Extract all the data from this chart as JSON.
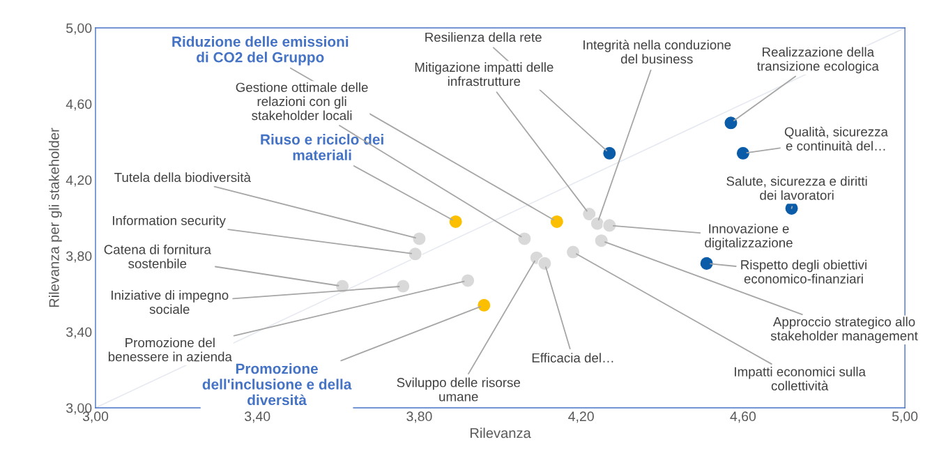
{
  "chart_data": {
    "type": "scatter",
    "xlabel": "Rilevanza",
    "ylabel": "Rilevanza per gli stakeholder",
    "xlim": [
      3,
      5
    ],
    "ylim": [
      3,
      5
    ],
    "xticks": [
      {
        "value": 3,
        "label": "3,00"
      },
      {
        "value": 3.4,
        "label": "3,40"
      },
      {
        "value": 3.8,
        "label": "3,80"
      },
      {
        "value": 4.2,
        "label": "4,20"
      },
      {
        "value": 4.6,
        "label": "4,60"
      },
      {
        "value": 5,
        "label": "5,00"
      }
    ],
    "yticks": [
      {
        "value": 3,
        "label": "3,00"
      },
      {
        "value": 3.4,
        "label": "3,40"
      },
      {
        "value": 3.8,
        "label": "3,80"
      },
      {
        "value": 4.2,
        "label": "4,20"
      },
      {
        "value": 4.6,
        "label": "4,60"
      },
      {
        "value": 5,
        "label": "5,00"
      }
    ],
    "grid": false,
    "marker": "circle",
    "series": [
      {
        "type": "line",
        "color": "#e6eaf0",
        "x": [
          3,
          5
        ],
        "values": [
          3,
          5
        ],
        "marker": "none"
      },
      {
        "color": "#0b5ca8",
        "x": [
          4.27,
          4.57,
          4.6,
          4.72,
          4.51
        ],
        "values": [
          4.34,
          4.5,
          4.34,
          4.05,
          3.76
        ]
      },
      {
        "color": "#fcbf00",
        "x": [
          3.89,
          4.14,
          3.96
        ],
        "values": [
          3.98,
          3.98,
          3.54
        ]
      },
      {
        "color": "#d9d9d9",
        "x": [
          3.8,
          3.79,
          3.61,
          3.76,
          3.92,
          4.06,
          4.09,
          4.11,
          4.18,
          4.22,
          4.24,
          4.27,
          4.25
        ],
        "values": [
          3.89,
          3.81,
          3.64,
          3.64,
          3.67,
          3.89,
          3.79,
          3.76,
          3.82,
          4.02,
          3.97,
          3.96,
          3.88
        ]
      }
    ],
    "annotations": [
      {
        "text": "Resilienza della rete",
        "x": 4.27,
        "y": 4.34
      },
      {
        "text": "Realizzazione della\ntransizione ecologica",
        "x": 4.57,
        "y": 4.5
      },
      {
        "text": "Qualità, sicurezza\ne continuità del…",
        "x": 4.6,
        "y": 4.34
      },
      {
        "text": "Salute, sicurezza e diritti\ndei lavoratori",
        "x": 4.72,
        "y": 4.05
      },
      {
        "text": "Rispetto degli obiettivi\neconomico-finanziari",
        "x": 4.51,
        "y": 3.76
      },
      {
        "text": "Riuso e riciclo dei\nmateriali",
        "x": 3.89,
        "y": 3.98
      },
      {
        "text": "Riduzione delle emissioni\ndi CO2 del Gruppo",
        "x": 4.14,
        "y": 3.98
      },
      {
        "text": "Promozione\ndell'inclusione e della\ndiversità",
        "x": 3.96,
        "y": 3.54
      },
      {
        "text": "Tutela della biodiversità",
        "x": 3.8,
        "y": 3.89
      },
      {
        "text": "Information security",
        "x": 3.79,
        "y": 3.81
      },
      {
        "text": "Catena di fornitura\nsostenbile",
        "x": 3.61,
        "y": 3.64
      },
      {
        "text": "Iniziative di impegno\nsociale",
        "x": 3.76,
        "y": 3.64
      },
      {
        "text": "Promozione del\nbenessere in azienda",
        "x": 3.92,
        "y": 3.67
      },
      {
        "text": "Gestione ottimale delle\nrelazioni con gli\nstakeholder locali",
        "x": 4.06,
        "y": 3.89
      },
      {
        "text": "Sviluppo delle risorse\numane",
        "x": 4.09,
        "y": 3.79
      },
      {
        "text": "Efficacia del…",
        "x": 4.11,
        "y": 3.76
      },
      {
        "text": "Impatti economici sulla\ncollettività",
        "x": 4.18,
        "y": 3.82
      },
      {
        "text": "Mitigazione impatti delle\ninfrastrutture",
        "x": 4.22,
        "y": 4.02
      },
      {
        "text": "Integrità nella conduzione\ndel business",
        "x": 4.24,
        "y": 3.97
      },
      {
        "text": "Innovazione e\ndigitalizzazione",
        "x": 4.27,
        "y": 3.96
      },
      {
        "text": "Approccio strategico allo\nstakeholder management",
        "x": 4.25,
        "y": 3.88
      }
    ]
  }
}
